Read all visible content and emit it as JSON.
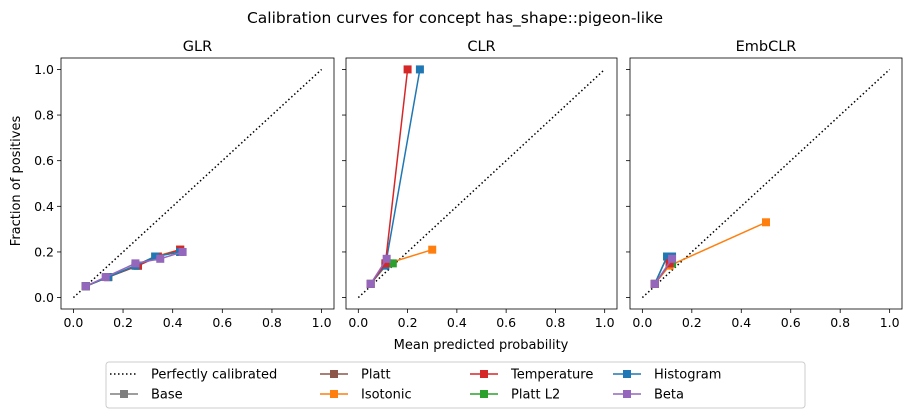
{
  "title": "Calibration curves for concept has_shape::pigeon-like",
  "xlabel": "Mean predicted probability",
  "ylabel": "Fraction of positives",
  "xticks": [
    "0.0",
    "0.2",
    "0.4",
    "0.6",
    "0.8",
    "1.0"
  ],
  "yticks": [
    "0.0",
    "0.2",
    "0.4",
    "0.6",
    "0.8",
    "1.0"
  ],
  "reference": {
    "label": "Perfectly calibrated",
    "color": "#000000",
    "style": "dotted"
  },
  "legend": {
    "placement": "bottom-center",
    "ncol": 5,
    "items": [
      {
        "key": "ref",
        "label": "Perfectly calibrated"
      },
      {
        "key": "Base",
        "label": "Base"
      },
      {
        "key": "Platt",
        "label": "Platt"
      },
      {
        "key": "Isotonic",
        "label": "Isotonic"
      },
      {
        "key": "Temperature",
        "label": "Temperature"
      },
      {
        "key": "Platt L2",
        "label": "Platt L2"
      },
      {
        "key": "Histogram",
        "label": "Histogram"
      },
      {
        "key": "Beta",
        "label": "Beta"
      }
    ]
  },
  "colors": {
    "Base": "#7f7f7f",
    "Platt": "#8c564b",
    "Isotonic": "#ff7f0e",
    "Temperature": "#d62728",
    "Platt L2": "#2ca02c",
    "Histogram": "#1f77b4",
    "Beta": "#9467bd"
  },
  "chart_data": [
    {
      "type": "line",
      "title": "GLR",
      "xlim": [
        0,
        1
      ],
      "ylim": [
        0,
        1
      ],
      "grid": false,
      "series": [
        {
          "name": "Base",
          "x": [
            0.05,
            0.14,
            0.26,
            0.33,
            0.43
          ],
          "y": [
            0.05,
            0.09,
            0.14,
            0.18,
            0.21
          ]
        },
        {
          "name": "Platt",
          "x": [
            0.05,
            0.14,
            0.26,
            0.34,
            0.43
          ],
          "y": [
            0.05,
            0.09,
            0.14,
            0.18,
            0.21
          ]
        },
        {
          "name": "Isotonic",
          "x": [
            0.05,
            0.14,
            0.25,
            0.33,
            0.43
          ],
          "y": [
            0.05,
            0.09,
            0.14,
            0.18,
            0.21
          ]
        },
        {
          "name": "Temperature",
          "x": [
            0.05,
            0.14,
            0.26,
            0.34,
            0.43
          ],
          "y": [
            0.05,
            0.09,
            0.14,
            0.18,
            0.21
          ]
        },
        {
          "name": "Platt L2",
          "x": [
            0.05,
            0.14,
            0.25,
            0.33,
            0.43
          ],
          "y": [
            0.05,
            0.09,
            0.14,
            0.18,
            0.2
          ]
        },
        {
          "name": "Histogram",
          "x": [
            0.05,
            0.14,
            0.25,
            0.33,
            0.43
          ],
          "y": [
            0.05,
            0.09,
            0.14,
            0.18,
            0.2
          ]
        },
        {
          "name": "Beta",
          "x": [
            0.05,
            0.13,
            0.25,
            0.35,
            0.44
          ],
          "y": [
            0.05,
            0.09,
            0.15,
            0.17,
            0.2
          ]
        }
      ]
    },
    {
      "type": "line",
      "title": "CLR",
      "xlim": [
        0,
        1
      ],
      "ylim": [
        0,
        1
      ],
      "grid": false,
      "series": [
        {
          "name": "Isotonic",
          "x": [
            0.05,
            0.12,
            0.3
          ],
          "y": [
            0.06,
            0.15,
            0.21
          ]
        },
        {
          "name": "Platt L2",
          "x": [
            0.05,
            0.11,
            0.14
          ],
          "y": [
            0.06,
            0.15,
            0.15
          ]
        },
        {
          "name": "Histogram",
          "x": [
            0.05,
            0.11,
            0.25
          ],
          "y": [
            0.06,
            0.14,
            1.0
          ]
        },
        {
          "name": "Temperature",
          "x": [
            0.05,
            0.11,
            0.2
          ],
          "y": [
            0.06,
            0.15,
            1.0
          ]
        },
        {
          "name": "Beta",
          "x": [
            0.05,
            0.115
          ],
          "y": [
            0.06,
            0.17
          ]
        }
      ]
    },
    {
      "type": "line",
      "title": "EmbCLR",
      "xlim": [
        0,
        1
      ],
      "ylim": [
        0,
        1
      ],
      "grid": false,
      "series": [
        {
          "name": "Isotonic",
          "x": [
            0.05,
            0.11,
            0.5
          ],
          "y": [
            0.06,
            0.14,
            0.33
          ]
        },
        {
          "name": "Platt L2",
          "x": [
            0.05,
            0.1,
            0.12
          ],
          "y": [
            0.06,
            0.18,
            0.15
          ]
        },
        {
          "name": "Histogram",
          "x": [
            0.05,
            0.1,
            0.12
          ],
          "y": [
            0.06,
            0.18,
            0.18
          ]
        },
        {
          "name": "Temperature",
          "x": [
            0.05,
            0.11
          ],
          "y": [
            0.06,
            0.15
          ]
        },
        {
          "name": "Beta",
          "x": [
            0.05,
            0.12
          ],
          "y": [
            0.06,
            0.17
          ]
        }
      ]
    }
  ]
}
